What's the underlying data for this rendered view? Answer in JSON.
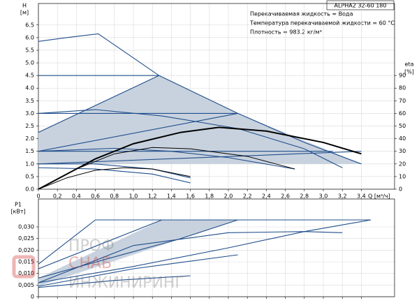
{
  "chart_data": [
    {
      "type": "line",
      "header": "ALPHA2 32-60 180",
      "annotations": [
        "Перекачиваемая жидкость = Вода",
        "Температура перекачиваемой жидкости = 60 °C",
        "Плотность = 983.2 кг/м³"
      ],
      "y_label": "H",
      "y_unit": "[м]",
      "y2_label": "eta",
      "y2_unit": "[%]",
      "x_label": "Q [м³/ч]",
      "xlim": [
        0,
        3.75
      ],
      "ylim": [
        0,
        7.35
      ],
      "y2lim": [
        0,
        147
      ],
      "grid": true,
      "xticks": [
        0,
        {
          "value": 0.2,
          "label": "0,2"
        },
        {
          "value": 0.4,
          "label": "0,4"
        },
        {
          "value": 0.6,
          "label": "0,6"
        },
        {
          "value": 0.8,
          "label": "0,8"
        },
        {
          "value": 1.0,
          "label": "1,0"
        },
        {
          "value": 1.2,
          "label": "1,2"
        },
        {
          "value": 1.4,
          "label": "1,4"
        },
        {
          "value": 1.6,
          "label": "1,6"
        },
        {
          "value": 1.8,
          "label": "1,8"
        },
        {
          "value": 2.0,
          "label": "2,0"
        },
        {
          "value": 2.2,
          "label": "2,2"
        },
        {
          "value": 2.4,
          "label": "2,4"
        },
        {
          "value": 2.6,
          "label": "2,6"
        },
        {
          "value": 2.8,
          "label": "2,8"
        },
        {
          "value": 3.0,
          "label": "3,0"
        },
        {
          "value": 3.2,
          "label": "3,2"
        },
        {
          "value": 3.4,
          "label": "3,4"
        }
      ],
      "yticks": [
        {
          "value": 0,
          "label": "0.0"
        },
        0.5,
        {
          "value": 1.0,
          "label": "1.0"
        },
        1.5,
        {
          "value": 2.0,
          "label": "2.0"
        },
        2.5,
        {
          "value": 3.0,
          "label": "3.0"
        },
        3.5,
        {
          "value": 4.0,
          "label": "4.0"
        },
        4.5,
        {
          "value": 5.0,
          "label": "5.0"
        },
        5.5,
        {
          "value": 6.0,
          "label": "6.0"
        },
        6.5
      ],
      "y2ticks": [
        0,
        10,
        20,
        30,
        40,
        50,
        60,
        70,
        80,
        90
      ],
      "series": [
        {
          "kind": "area",
          "color": "#c8d2de",
          "x": [
            0,
            1.27,
            2.1,
            3.4,
            0
          ],
          "values": [
            2.25,
            4.5,
            3.0,
            1.0,
            1.0
          ]
        },
        {
          "color": "#1f4e8c",
          "x": [
            0,
            0.3,
            0.63,
            1.27,
            2.1,
            2.8,
            3.4
          ],
          "values": [
            5.85,
            6.0,
            6.15,
            4.5,
            3.0,
            1.85,
            1.0
          ]
        },
        {
          "color": "#1f4e8c",
          "x": [
            0,
            1.27
          ],
          "values": [
            4.5,
            4.5
          ]
        },
        {
          "color": "#1f4e8c",
          "x": [
            0,
            1.27
          ],
          "values": [
            2.25,
            4.5
          ]
        },
        {
          "color": "#1f4e8c",
          "x": [
            0,
            2.1
          ],
          "values": [
            3.0,
            3.0
          ]
        },
        {
          "color": "#1f4e8c",
          "x": [
            0,
            2.1
          ],
          "values": [
            1.5,
            3.0
          ]
        },
        {
          "color": "#1f4e8c",
          "x": [
            0,
            3.1
          ],
          "values": [
            1.5,
            1.5
          ]
        },
        {
          "color": "#1f4e8c",
          "x": [
            0,
            3.4
          ],
          "values": [
            1.0,
            1.5
          ]
        },
        {
          "color": "#1f4e8c",
          "x": [
            0,
            0.6,
            1.3,
            2.1,
            2.8,
            3.2
          ],
          "values": [
            3.0,
            3.15,
            2.9,
            2.4,
            1.6,
            0.85
          ]
        },
        {
          "color": "#1f4e8c",
          "x": [
            0,
            0.8,
            1.4,
            2.0,
            2.7
          ],
          "values": [
            1.5,
            1.62,
            1.5,
            1.25,
            0.8
          ]
        },
        {
          "color": "#1f4e8c",
          "x": [
            0,
            0.6,
            1.2,
            1.6
          ],
          "values": [
            1.0,
            1.0,
            0.8,
            0.45
          ]
        },
        {
          "color": "#1f4e8c",
          "x": [
            0,
            0.6,
            1.2,
            1.6
          ],
          "values": [
            0.85,
            0.8,
            0.6,
            0.25
          ]
        },
        {
          "color": "#000000",
          "width": 2,
          "axis": "y2",
          "x": [
            0,
            0.3,
            0.6,
            1.0,
            1.5,
            1.9,
            2.4,
            3.0,
            3.4
          ],
          "values": [
            0,
            12,
            24,
            36,
            45,
            49,
            46,
            37,
            28
          ]
        },
        {
          "color": "#000000",
          "width": 1,
          "axis": "y2",
          "x": [
            0,
            0.4,
            0.8,
            1.2,
            1.6,
            2.2,
            2.7
          ],
          "values": [
            0,
            16,
            28,
            33,
            32,
            26,
            16
          ]
        },
        {
          "color": "#000000",
          "width": 1,
          "axis": "y2",
          "x": [
            0,
            0.3,
            0.6,
            0.9,
            1.2,
            1.6
          ],
          "values": [
            0,
            9,
            15,
            17,
            16,
            10
          ]
        }
      ]
    },
    {
      "type": "line",
      "y_label": "P1",
      "y_unit": "[кВт]",
      "xlim": [
        0,
        3.75
      ],
      "ylim": [
        0,
        0.042
      ],
      "grid": true,
      "xticks": [
        0,
        0.2,
        0.4,
        0.6,
        0.8,
        1.0,
        1.2,
        1.4,
        1.6,
        1.8,
        2.0,
        2.2,
        2.4,
        2.6,
        2.8,
        3.0,
        3.2,
        3.4
      ],
      "yticks": [
        0,
        {
          "value": 0.005,
          "label": "0,005"
        },
        {
          "value": 0.01,
          "label": "0,010"
        },
        {
          "value": 0.015,
          "label": "0,015"
        },
        {
          "value": 0.02,
          "label": "0,020"
        },
        {
          "value": 0.025,
          "label": "0,025"
        },
        {
          "value": 0.03,
          "label": "0,030"
        }
      ],
      "watermark": [
        "ПРОФ",
        "СНАБ",
        "ИНЖИНИРИНГ"
      ],
      "series": [
        {
          "kind": "area",
          "color": "#c8d2de",
          "x": [
            0,
            1.3,
            2.1,
            0
          ],
          "values": [
            0.008,
            0.033,
            0.033,
            0.0045
          ]
        },
        {
          "color": "#1f4e8c",
          "x": [
            0,
            0.6,
            3.5
          ],
          "values": [
            0.014,
            0.033,
            0.033
          ]
        },
        {
          "color": "#1f4e8c",
          "x": [
            0,
            1.3
          ],
          "values": [
            0.012,
            0.033
          ]
        },
        {
          "color": "#1f4e8c",
          "x": [
            0,
            0.7,
            1.5,
            2.1
          ],
          "values": [
            0.008,
            0.016,
            0.025,
            0.033
          ]
        },
        {
          "color": "#1f4e8c",
          "x": [
            0,
            1.0,
            2.0,
            2.8,
            3.5
          ],
          "values": [
            0.006,
            0.013,
            0.021,
            0.028,
            0.033
          ]
        },
        {
          "color": "#1f4e8c",
          "x": [
            0,
            1.0,
            2.0,
            2.8,
            3.2
          ],
          "values": [
            0.006,
            0.022,
            0.0275,
            0.028,
            0.0275
          ]
        },
        {
          "color": "#1f4e8c",
          "x": [
            0,
            1.0,
            2.1
          ],
          "values": [
            0.0045,
            0.012,
            0.018
          ]
        },
        {
          "color": "#1f4e8c",
          "x": [
            0,
            0.8,
            1.6
          ],
          "values": [
            0.004,
            0.007,
            0.009
          ]
        }
      ]
    }
  ]
}
